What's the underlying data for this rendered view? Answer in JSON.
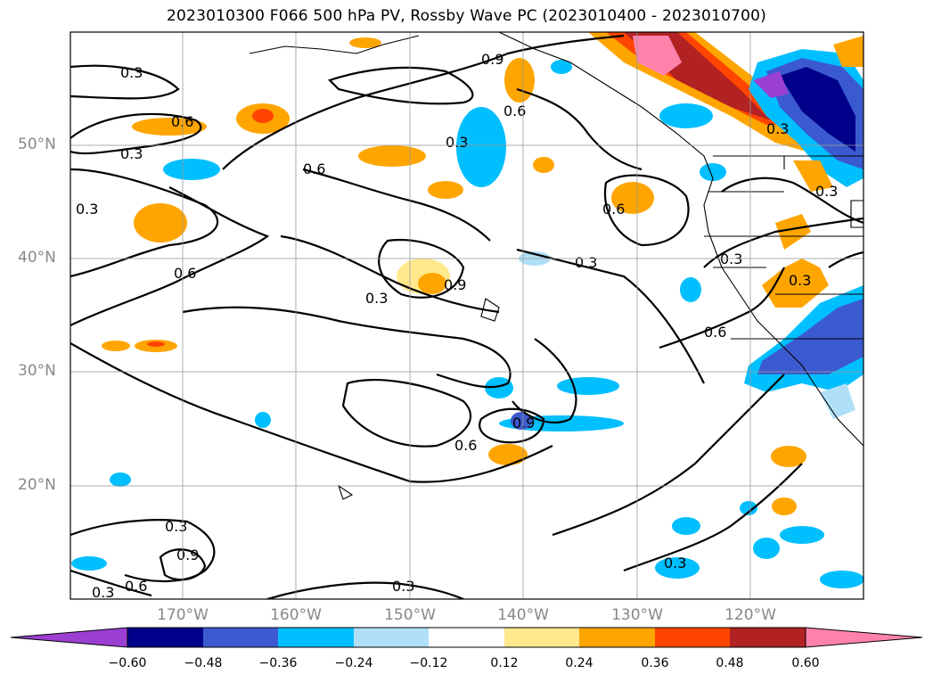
{
  "title": "2023010300 F066 500 hPa PV, Rossby Wave PC (2023010400 - 2023010700)",
  "lat_labels": [
    "50°N",
    "40°N",
    "30°N",
    "20°N"
  ],
  "lon_labels": [
    "170°W",
    "160°W",
    "150°W",
    "140°W",
    "130°W",
    "120°W"
  ],
  "contour_labels": [
    "0.3",
    "0.6",
    "0.9"
  ],
  "colorbar": {
    "ticks": [
      "−0.60",
      "−0.48",
      "−0.36",
      "−0.24",
      "−0.12",
      "0.12",
      "0.24",
      "0.36",
      "0.48",
      "0.60"
    ],
    "colors": {
      "under": "#9b3fd2",
      "neg_060": "#00008b",
      "neg_048": "#3c5ad0",
      "neg_036": "#00bfff",
      "neg_024": "#b0e0f8",
      "neutral": "#ffffff",
      "pos_012": "#ffe98c",
      "pos_024": "#ffa500",
      "pos_036": "#ff4500",
      "pos_048": "#b22222",
      "over": "#ff82ab"
    }
  }
}
